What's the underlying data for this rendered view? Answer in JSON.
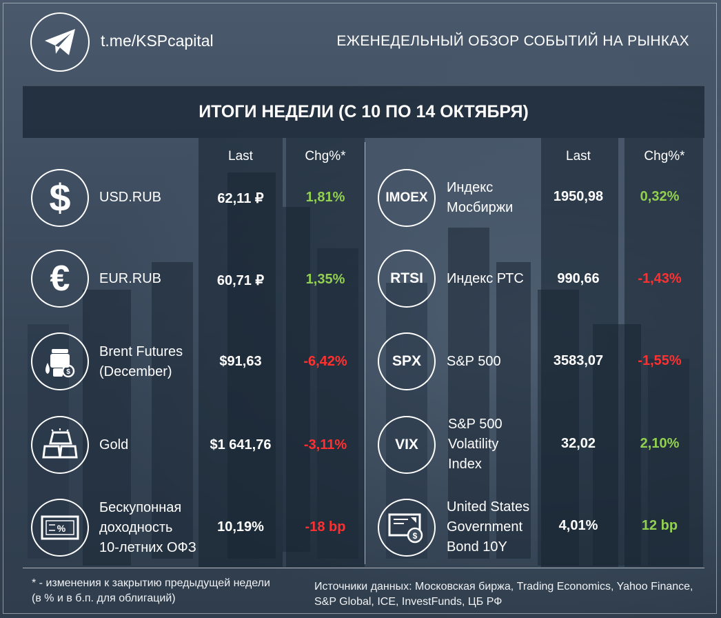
{
  "header": {
    "handle": "t.me/KSPcapital",
    "title": "ЕЖЕНЕДЕЛЬНЫЙ ОБЗОР СОБЫТИЙ НА РЫНКАХ",
    "week": "ИТОГИ НЕДЕЛИ (С 10 ПО 14 ОКТЯБРЯ)"
  },
  "columns": {
    "last": "Last",
    "chg": "Chg%*"
  },
  "left_rows": [
    {
      "name": "USD.RUB",
      "icon": "dollar-icon",
      "last": "62,11 ₽",
      "chg": "1,81%",
      "dir": "pos"
    },
    {
      "name": "EUR.RUB",
      "icon": "euro-icon",
      "last": "60,71 ₽",
      "chg": "1,35%",
      "dir": "pos"
    },
    {
      "name": "Brent Futures\n(December)",
      "icon": "oil-barrel-icon",
      "last": "$91,63",
      "chg": "-6,42%",
      "dir": "neg"
    },
    {
      "name": "Gold",
      "icon": "gold-bar-icon",
      "last": "$1 641,76",
      "chg": "-3,11%",
      "dir": "neg"
    },
    {
      "name": "Бескупонная\nдоходность\n10-летних ОФЗ",
      "icon": "bond-certificate-icon",
      "last": "10,19%",
      "chg": "-18 bp",
      "dir": "neg"
    }
  ],
  "right_rows": [
    {
      "name": "Индекс\nМосбиржи",
      "icon_text": "IMOEX",
      "last": "1950,98",
      "chg": "0,32%",
      "dir": "pos"
    },
    {
      "name": "Индекс РТС",
      "icon_text": "RTSI",
      "last": "990,66",
      "chg": "-1,43%",
      "dir": "neg"
    },
    {
      "name": "S&P 500",
      "icon_text": "SPX",
      "last": "3583,07",
      "chg": "-1,55%",
      "dir": "neg"
    },
    {
      "name": "S&P 500\nVolatility\nIndex",
      "icon_text": "VIX",
      "last": "32,02",
      "chg": "2,10%",
      "dir": "pos"
    },
    {
      "name": "United States\nGovernment\nBond 10Y",
      "icon": "us-bond-certificate-icon",
      "last": "4,01%",
      "chg": "12 bp",
      "dir": "pos"
    }
  ],
  "footer": {
    "note": "* - изменения к закрытию предыдущей недели\n(в % и в б.п. для облигаций)",
    "sources": "Источники данных: Московская биржа, Trading Economics, Yahoo Finance,\nS&P Global, ICE, InvestFunds, ЦБ РФ"
  },
  "colors": {
    "positive": "#92d050",
    "negative": "#ff3030"
  }
}
